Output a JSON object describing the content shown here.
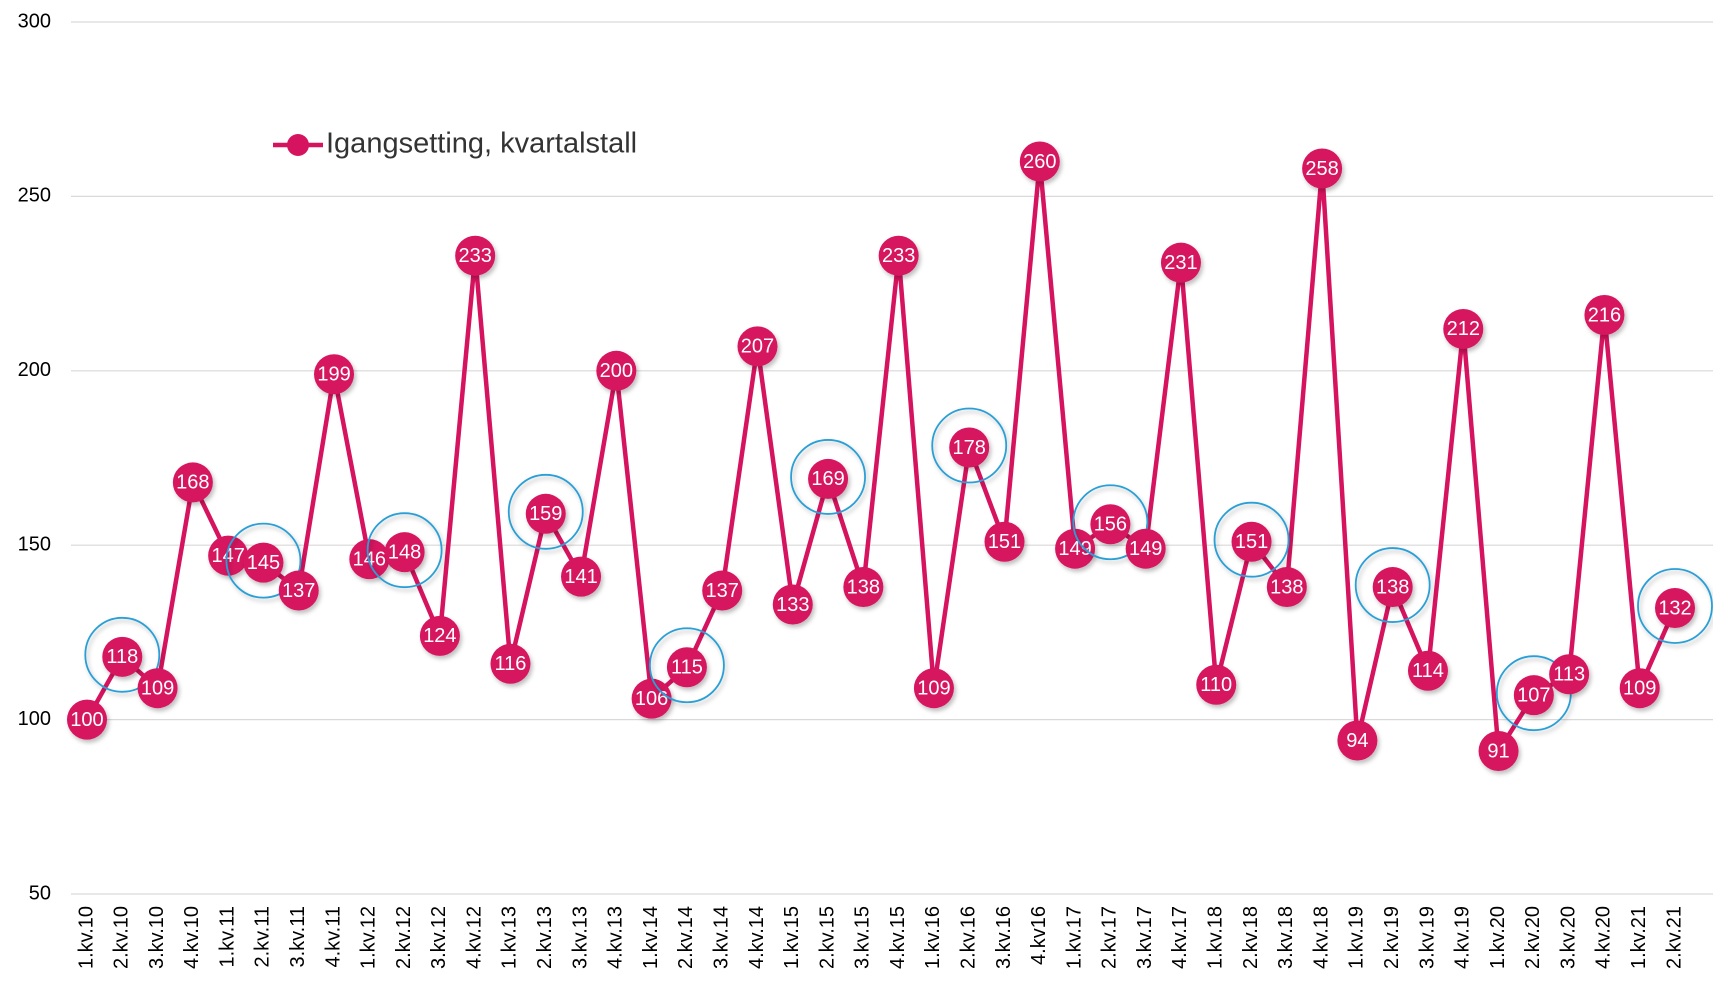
{
  "chart_data": {
    "type": "line",
    "categories": [
      "1.kv.10",
      "2.kv.10",
      "3.kv.10",
      "4.kv.10",
      "1.kv.11",
      "2.kv.11",
      "3.kv.11",
      "4.kv.11",
      "1.kv.12",
      "2.kv.12",
      "3.kv.12",
      "4.kv.12",
      "1.kv.13",
      "2.kv.13",
      "3.kv.13",
      "4.kv.13",
      "1.kv.14",
      "2.kv.14",
      "3.kv.14",
      "4.kv.14",
      "1.kv.15",
      "2.kv.15",
      "3.kv.15",
      "4.kv.15",
      "1.kv.16",
      "2.kv.16",
      "3.kv.16",
      "4.kv16",
      "1.kv.17",
      "2.kv.17",
      "3.kv.17",
      "4.kv.17",
      "1.kv.18",
      "2.kv.18",
      "3.kv.18",
      "4.kv.18",
      "1.kv.19",
      "2.kv.19",
      "3.kv.19",
      "4.kv.19",
      "1.kv.20",
      "2.kv.20",
      "3.kv.20",
      "4.kv.20",
      "1.kv.21",
      "2.kv.21"
    ],
    "series": [
      {
        "name": "Igangsetting, kvartalstall",
        "color": "#d6135e",
        "values": [
          100,
          118,
          109,
          168,
          147,
          145,
          137,
          199,
          146,
          148,
          124,
          233,
          116,
          159,
          141,
          200,
          106,
          115,
          137,
          207,
          133,
          169,
          138,
          233,
          109,
          178,
          151,
          260,
          149,
          156,
          149,
          231,
          110,
          151,
          138,
          258,
          94,
          138,
          114,
          212,
          91,
          107,
          113,
          216,
          109,
          132
        ]
      }
    ],
    "ylim": [
      50,
      300
    ],
    "yticks": [
      50,
      100,
      150,
      200,
      250,
      300
    ],
    "grid": true,
    "legend": "upper-left",
    "highlight_color": "#2a9fd6"
  }
}
